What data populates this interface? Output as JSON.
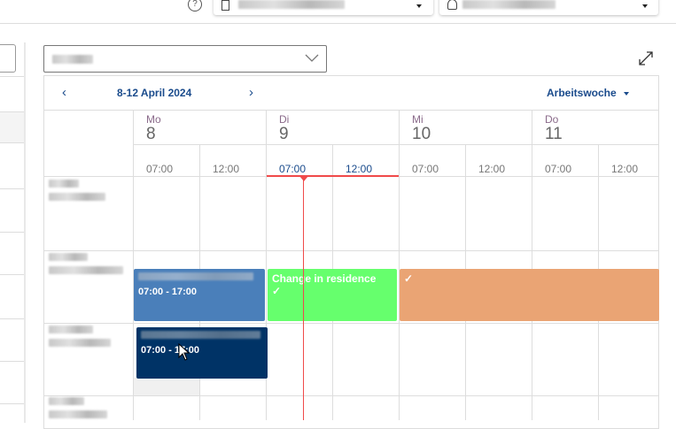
{
  "topbar": {
    "help_icon": "help-circle-icon",
    "location_icon": "building-icon",
    "user_icon": "user-icon"
  },
  "filter": {
    "expand_icon": "expand-arrows-icon"
  },
  "calendar": {
    "range": "8-12 April 2024",
    "view": "Arbeitswoche",
    "days": [
      {
        "name": "Mo",
        "date": "8"
      },
      {
        "name": "Di",
        "date": "9"
      },
      {
        "name": "Mi",
        "date": "10"
      },
      {
        "name": "Do",
        "date": "11"
      }
    ],
    "times": [
      "07:00",
      "12:00"
    ],
    "events": [
      {
        "time": "07:00 - 17:00",
        "color": "#4a7fba"
      },
      {
        "title": "Change in residence",
        "check": "✓",
        "color": "#66ff6d"
      },
      {
        "check": "✓",
        "color": "#eaa474"
      },
      {
        "time": "07:00 - 17:00",
        "color": "#003366"
      }
    ],
    "now_color": "#f04a4a"
  }
}
